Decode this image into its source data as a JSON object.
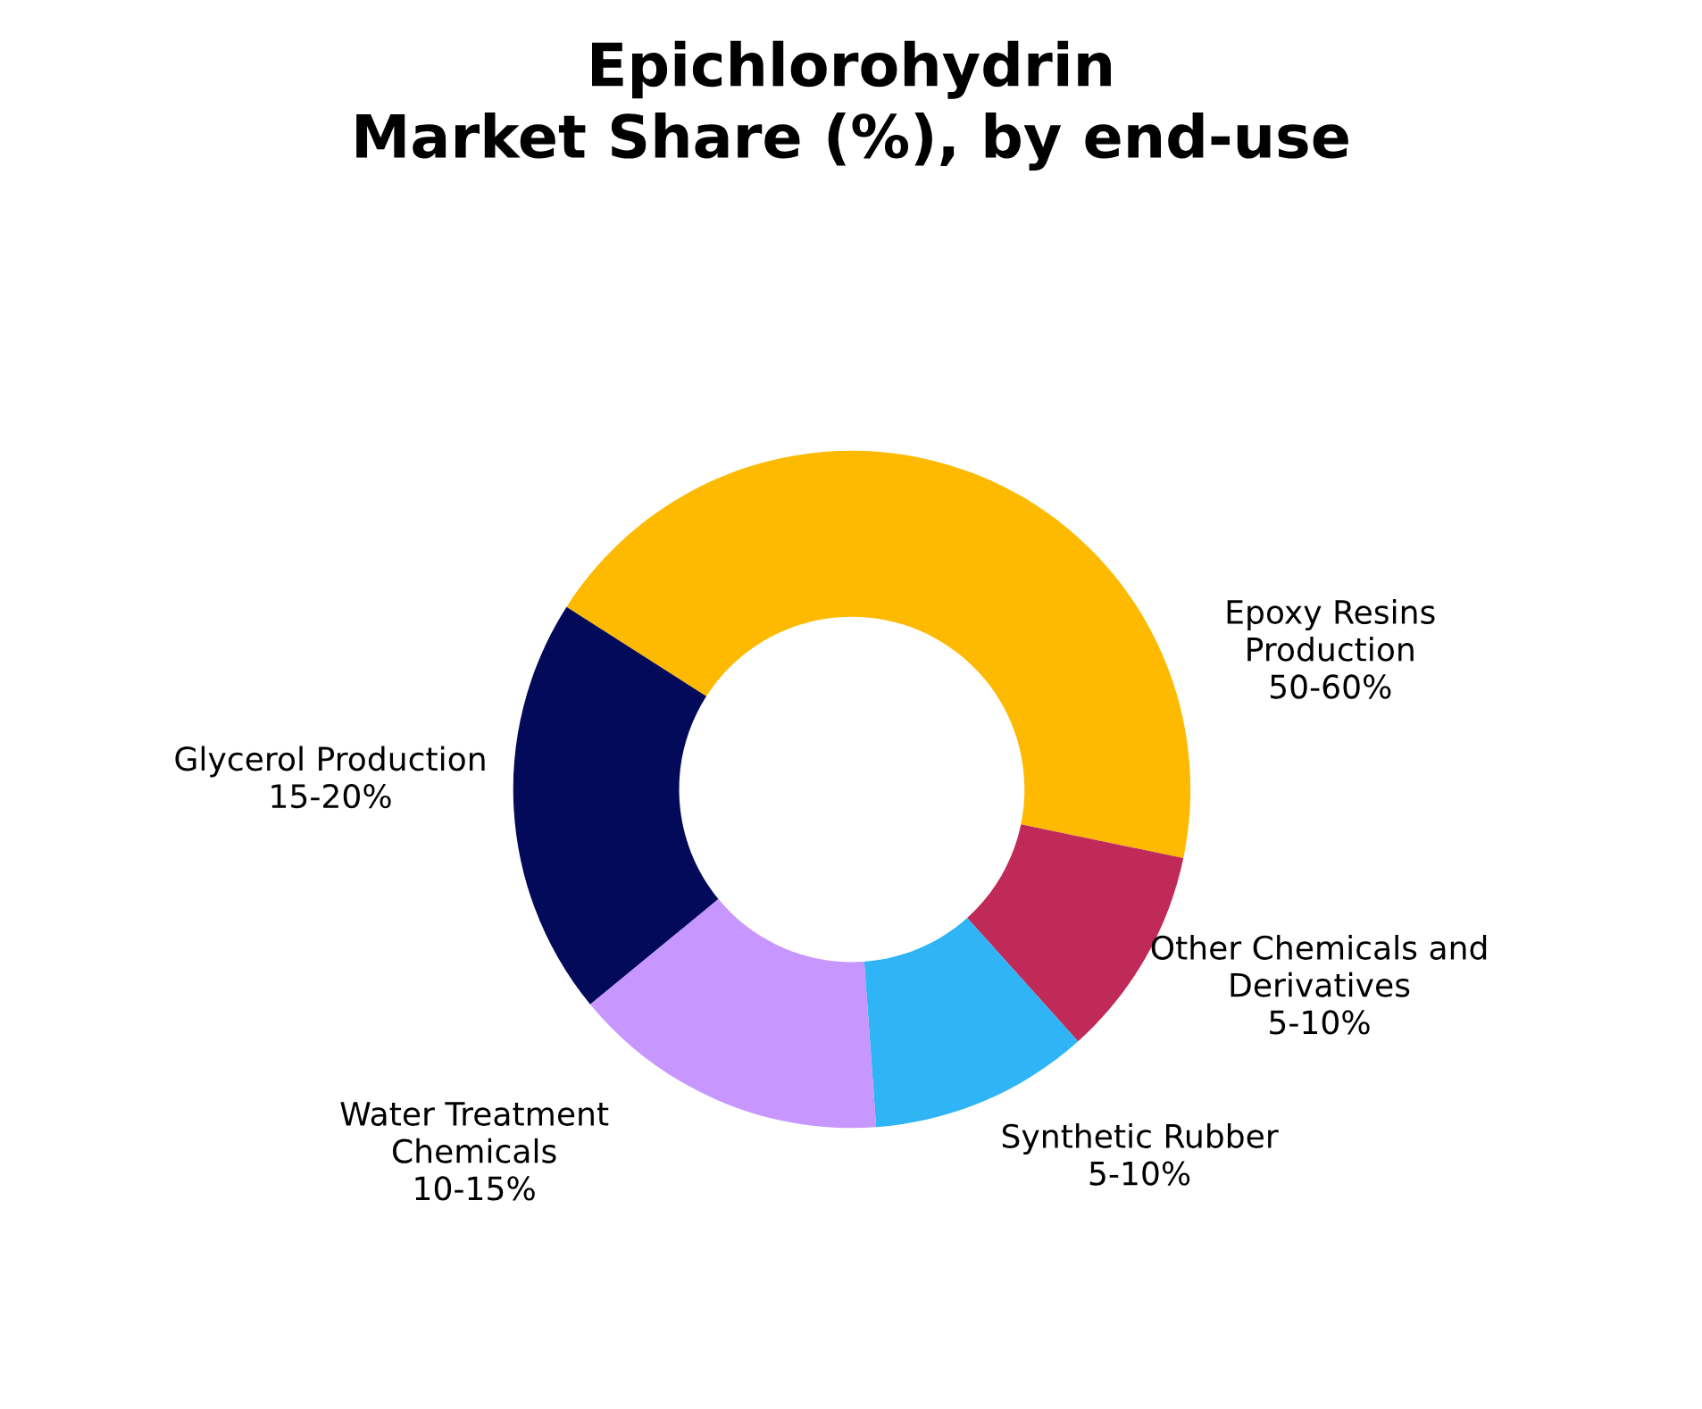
{
  "chart_data": {
    "type": "donut",
    "title": "Epichlorohydrin\nMarket Share (%), by end-use",
    "categories": [
      "Epoxy Resins\nProduction",
      "Other Chemicals and\nDerivatives",
      "Synthetic Rubber",
      "Water Treatment\nChemicals",
      "Glycerol Production"
    ],
    "values": [
      44.2,
      10.1,
      10.5,
      15.2,
      20.0
    ],
    "annotations": [
      "50-60%",
      "5-10%",
      "5-10%",
      "10-15%",
      "15-20%"
    ],
    "colors": [
      "#fdba00",
      "#bf2a59",
      "#2fb4f5",
      "#c896ff",
      "#030a5a"
    ],
    "legend": false
  }
}
